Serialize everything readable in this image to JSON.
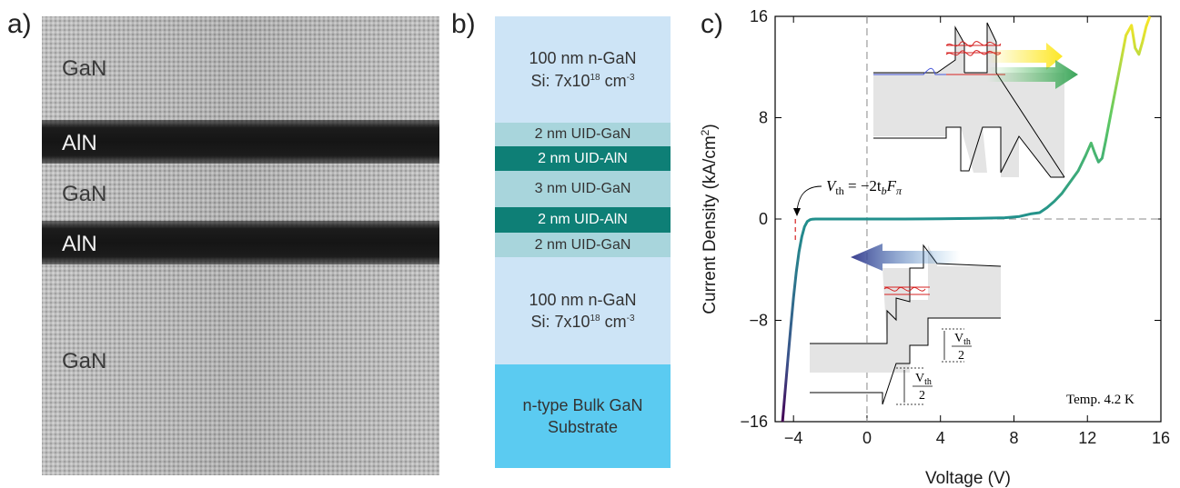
{
  "panel_labels": {
    "a": "a)",
    "b": "b)",
    "c": "c)"
  },
  "tem": {
    "labels": {
      "gan_top": "GaN",
      "aln_1": "AlN",
      "gan_mid": "GaN",
      "aln_2": "AlN",
      "gan_bottom": "GaN"
    }
  },
  "stack": {
    "layers": [
      {
        "line1": "100 nm n-GaN",
        "line2": "Si: 7x10",
        "exp": "18",
        "unit": " cm",
        "unit_exp": "-3",
        "kind": "thick"
      },
      {
        "line1": "2 nm UID-GaN",
        "kind": "gan"
      },
      {
        "line1": "2 nm UID-AlN",
        "kind": "aln"
      },
      {
        "line1": "3 nm UID-GaN",
        "kind": "gan"
      },
      {
        "line1": "2 nm UID-AlN",
        "kind": "aln"
      },
      {
        "line1": "2 nm UID-GaN",
        "kind": "gan"
      },
      {
        "line1": "100 nm n-GaN",
        "line2": "Si: 7x10",
        "exp": "18",
        "unit": " cm",
        "unit_exp": "-3",
        "kind": "thick"
      },
      {
        "line1": "n-type Bulk GaN",
        "line2": "Substrate",
        "kind": "sub"
      }
    ]
  },
  "chart_data": {
    "type": "line",
    "xlabel": "Voltage (V)",
    "ylabel": "Current Density (kA/cm",
    "ylabel_sup": "2",
    "ylabel_close": ")",
    "xlim": [
      -5,
      16
    ],
    "ylim": [
      -16,
      16
    ],
    "x_ticks": [
      "−4",
      "0",
      "4",
      "8",
      "12",
      "16"
    ],
    "y_ticks": [
      "16",
      "8",
      "0",
      "−8",
      "−16"
    ],
    "x_tick_values": [
      -4,
      0,
      4,
      8,
      12,
      16
    ],
    "y_tick_values": [
      16,
      8,
      0,
      -8,
      -16
    ],
    "series": [
      {
        "x": [
          -4.6,
          -4.45,
          -4.3,
          -4.15,
          -4.0,
          -3.85,
          -3.7,
          -3.55,
          -3.4,
          -3.25,
          -3.1,
          -3.0,
          -2.8,
          -2.5,
          -2.0,
          -1.0,
          0.0,
          2.0,
          4.0,
          6.0,
          7.5,
          8.3,
          8.9,
          9.4,
          9.8,
          10.2,
          10.6,
          11.0,
          11.5,
          11.9,
          12.2,
          12.4,
          12.6,
          12.8,
          13.0,
          13.3,
          13.7,
          14.1,
          14.4,
          14.6,
          14.8,
          15.0,
          15.2,
          15.4
        ],
        "y": [
          -16,
          -13.5,
          -11,
          -8.5,
          -6.2,
          -4.2,
          -2.6,
          -1.4,
          -0.6,
          -0.2,
          -0.05,
          -0.02,
          0.0,
          0.0,
          0.0,
          0.0,
          0.0,
          0.0,
          0.02,
          0.05,
          0.1,
          0.2,
          0.4,
          0.5,
          0.9,
          1.4,
          2.0,
          2.8,
          3.8,
          5.0,
          6.0,
          5.2,
          4.5,
          4.8,
          6.2,
          8.5,
          11.5,
          14.5,
          15.3,
          13.5,
          13.0,
          14.0,
          15.2,
          16.0
        ]
      }
    ],
    "annotations": {
      "vth_formula": "V",
      "vth_sub": "th",
      "vth_rhs": " = −2t",
      "vth_b": "b",
      "vth_F": "F",
      "vth_pi": "π",
      "temp": "Temp. 4.2 K",
      "frac_num": "V",
      "frac_num_sub": "th",
      "frac_den": "2"
    },
    "grid": false,
    "colors": {
      "curve_start": "#440154",
      "curve_mid": "#21908d",
      "curve_end": "#fde725"
    }
  }
}
